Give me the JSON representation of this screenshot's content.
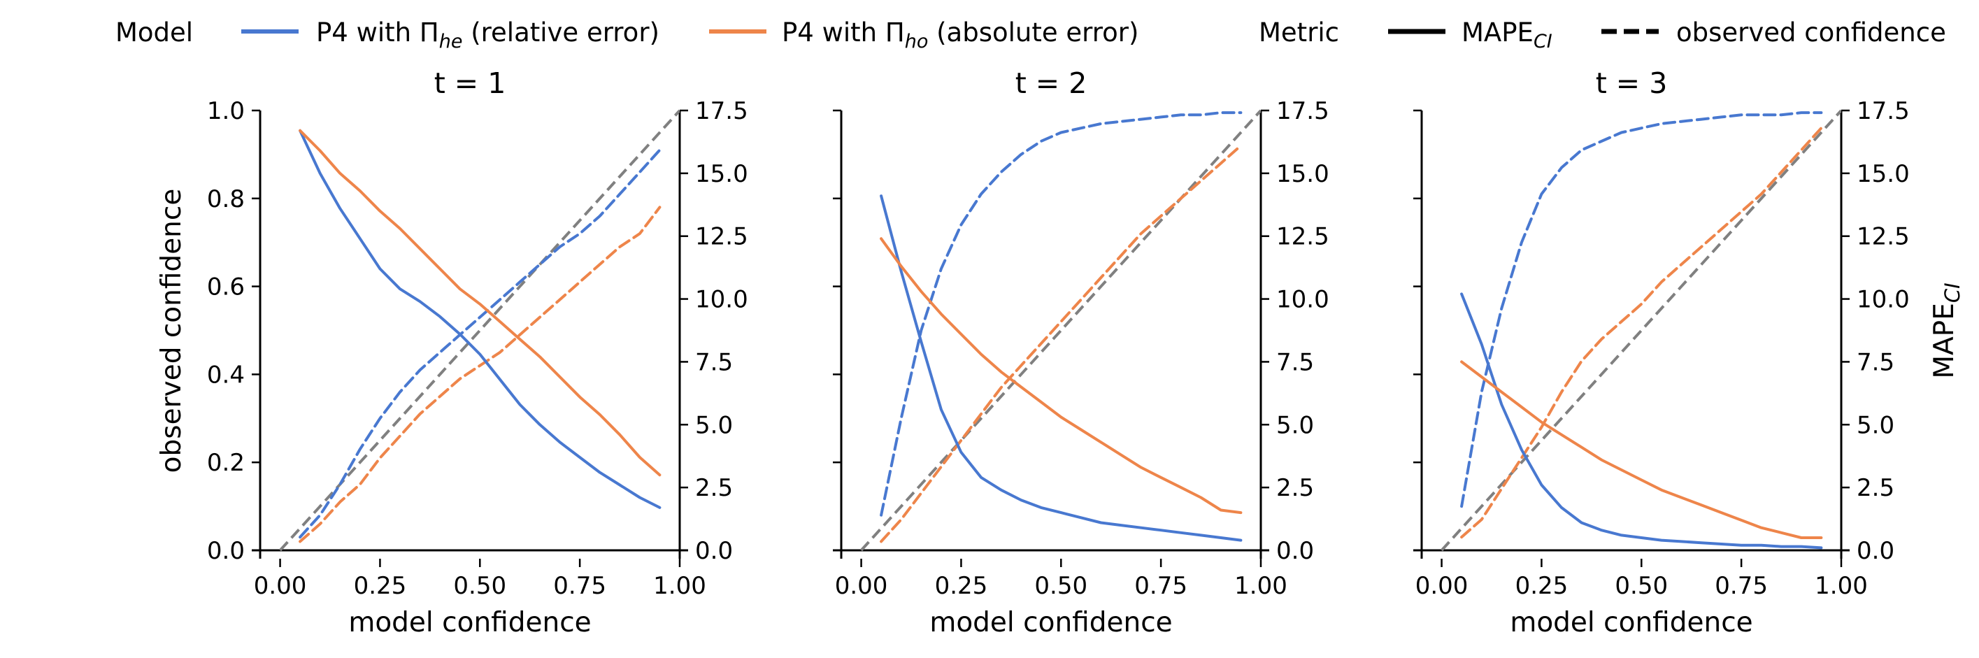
{
  "legend": {
    "model_title": "Model",
    "metric_title": "Metric",
    "series": [
      {
        "prefix": "P4 with Π",
        "sub": "he",
        "suffix": " (relative error)",
        "color": "#4878d0"
      },
      {
        "prefix": "P4 with Π",
        "sub": "ho",
        "suffix": " (absolute error)",
        "color": "#ee854a"
      }
    ],
    "metrics": [
      {
        "prefix": "MAPE",
        "sub": "CI",
        "style": "solid"
      },
      {
        "prefix": "observed confidence",
        "sub": "",
        "style": "dashed"
      }
    ]
  },
  "axes": {
    "xlabel": "model confidence",
    "ylabel_left": "observed confidence",
    "ylabel_right_prefix": "MAPE",
    "ylabel_right_sub": "CI",
    "x_ticks": [
      "0.00",
      "0.25",
      "0.50",
      "0.75",
      "1.00"
    ],
    "y_left_ticks": [
      "0.0",
      "0.2",
      "0.4",
      "0.6",
      "0.8",
      "1.0"
    ],
    "y_right_ticks": [
      "0.0",
      "2.5",
      "5.0",
      "7.5",
      "10.0",
      "12.5",
      "15.0",
      "17.5"
    ]
  },
  "colors": {
    "he": "#4878d0",
    "ho": "#ee854a",
    "diagonal": "#808080"
  },
  "chart_data": [
    {
      "type": "line",
      "title": "t = 1",
      "xlabel": "model confidence",
      "ylabel": "observed confidence",
      "xlim": [
        -0.05,
        1.0
      ],
      "ylim_left": [
        0.0,
        1.0
      ],
      "ylim_right": [
        0.0,
        17.5
      ],
      "x": [
        0.05,
        0.1,
        0.15,
        0.2,
        0.25,
        0.3,
        0.35,
        0.4,
        0.45,
        0.5,
        0.55,
        0.6,
        0.65,
        0.7,
        0.75,
        0.8,
        0.85,
        0.9,
        0.95
      ],
      "series": [
        {
          "model": "he",
          "metric": "observed confidence",
          "axis": "left",
          "values": [
            0.03,
            0.08,
            0.15,
            0.23,
            0.3,
            0.36,
            0.41,
            0.45,
            0.49,
            0.53,
            0.57,
            0.61,
            0.65,
            0.69,
            0.72,
            0.76,
            0.81,
            0.86,
            0.91
          ]
        },
        {
          "model": "ho",
          "metric": "observed confidence",
          "axis": "left",
          "values": [
            0.02,
            0.06,
            0.11,
            0.15,
            0.21,
            0.26,
            0.31,
            0.35,
            0.39,
            0.42,
            0.45,
            0.49,
            0.53,
            0.57,
            0.61,
            0.65,
            0.69,
            0.72,
            0.78
          ]
        },
        {
          "model": "he",
          "metric": "MAPE_CI",
          "axis": "right",
          "values": [
            16.7,
            15.0,
            13.6,
            12.4,
            11.2,
            10.4,
            9.9,
            9.3,
            8.6,
            7.8,
            6.8,
            5.8,
            5.0,
            4.3,
            3.7,
            3.1,
            2.6,
            2.1,
            1.7
          ]
        },
        {
          "model": "ho",
          "metric": "MAPE_CI",
          "axis": "right",
          "values": [
            16.7,
            15.9,
            15.0,
            14.3,
            13.5,
            12.8,
            12.0,
            11.2,
            10.4,
            9.8,
            9.1,
            8.4,
            7.7,
            6.9,
            6.1,
            5.4,
            4.6,
            3.7,
            3.0
          ]
        }
      ]
    },
    {
      "type": "line",
      "title": "t = 2",
      "xlabel": "model confidence",
      "ylabel": "observed confidence",
      "xlim": [
        -0.05,
        1.0
      ],
      "ylim_left": [
        0.0,
        1.0
      ],
      "ylim_right": [
        0.0,
        17.5
      ],
      "x": [
        0.05,
        0.1,
        0.15,
        0.2,
        0.25,
        0.3,
        0.35,
        0.4,
        0.45,
        0.5,
        0.55,
        0.6,
        0.65,
        0.7,
        0.75,
        0.8,
        0.85,
        0.9,
        0.95
      ],
      "series": [
        {
          "model": "he",
          "metric": "observed confidence",
          "axis": "left",
          "values": [
            0.08,
            0.3,
            0.5,
            0.64,
            0.74,
            0.81,
            0.86,
            0.9,
            0.93,
            0.95,
            0.96,
            0.97,
            0.975,
            0.98,
            0.985,
            0.99,
            0.99,
            0.995,
            0.995
          ]
        },
        {
          "model": "ho",
          "metric": "observed confidence",
          "axis": "left",
          "values": [
            0.02,
            0.07,
            0.13,
            0.19,
            0.25,
            0.31,
            0.37,
            0.42,
            0.47,
            0.52,
            0.57,
            0.62,
            0.67,
            0.72,
            0.76,
            0.8,
            0.84,
            0.88,
            0.92
          ]
        },
        {
          "model": "he",
          "metric": "MAPE_CI",
          "axis": "right",
          "values": [
            14.1,
            11.1,
            8.3,
            5.6,
            3.9,
            2.9,
            2.4,
            2.0,
            1.7,
            1.5,
            1.3,
            1.1,
            1.0,
            0.9,
            0.8,
            0.7,
            0.6,
            0.5,
            0.4
          ]
        },
        {
          "model": "ho",
          "metric": "MAPE_CI",
          "axis": "right",
          "values": [
            12.4,
            11.3,
            10.3,
            9.4,
            8.6,
            7.8,
            7.1,
            6.5,
            5.9,
            5.3,
            4.8,
            4.3,
            3.8,
            3.3,
            2.9,
            2.5,
            2.1,
            1.6,
            1.5
          ]
        }
      ]
    },
    {
      "type": "line",
      "title": "t = 3",
      "xlabel": "model confidence",
      "ylabel": "observed confidence",
      "xlim": [
        -0.05,
        1.0
      ],
      "ylim_left": [
        0.0,
        1.0
      ],
      "ylim_right": [
        0.0,
        17.5
      ],
      "x": [
        0.05,
        0.1,
        0.15,
        0.2,
        0.25,
        0.3,
        0.35,
        0.4,
        0.45,
        0.5,
        0.55,
        0.6,
        0.65,
        0.7,
        0.75,
        0.8,
        0.85,
        0.9,
        0.95
      ],
      "series": [
        {
          "model": "he",
          "metric": "observed confidence",
          "axis": "left",
          "values": [
            0.1,
            0.36,
            0.55,
            0.7,
            0.81,
            0.87,
            0.91,
            0.93,
            0.95,
            0.96,
            0.97,
            0.975,
            0.98,
            0.985,
            0.99,
            0.99,
            0.99,
            0.995,
            0.995
          ]
        },
        {
          "model": "ho",
          "metric": "observed confidence",
          "axis": "left",
          "values": [
            0.03,
            0.07,
            0.14,
            0.21,
            0.28,
            0.36,
            0.43,
            0.48,
            0.52,
            0.56,
            0.61,
            0.65,
            0.69,
            0.73,
            0.77,
            0.81,
            0.86,
            0.91,
            0.96
          ]
        },
        {
          "model": "he",
          "metric": "MAPE_CI",
          "axis": "right",
          "values": [
            10.2,
            8.2,
            5.8,
            4.0,
            2.6,
            1.7,
            1.1,
            0.8,
            0.6,
            0.5,
            0.4,
            0.35,
            0.3,
            0.25,
            0.2,
            0.2,
            0.15,
            0.15,
            0.1
          ]
        },
        {
          "model": "ho",
          "metric": "MAPE_CI",
          "axis": "right",
          "values": [
            7.5,
            6.9,
            6.3,
            5.7,
            5.1,
            4.6,
            4.1,
            3.6,
            3.2,
            2.8,
            2.4,
            2.1,
            1.8,
            1.5,
            1.2,
            0.9,
            0.7,
            0.5,
            0.5
          ]
        }
      ]
    }
  ]
}
